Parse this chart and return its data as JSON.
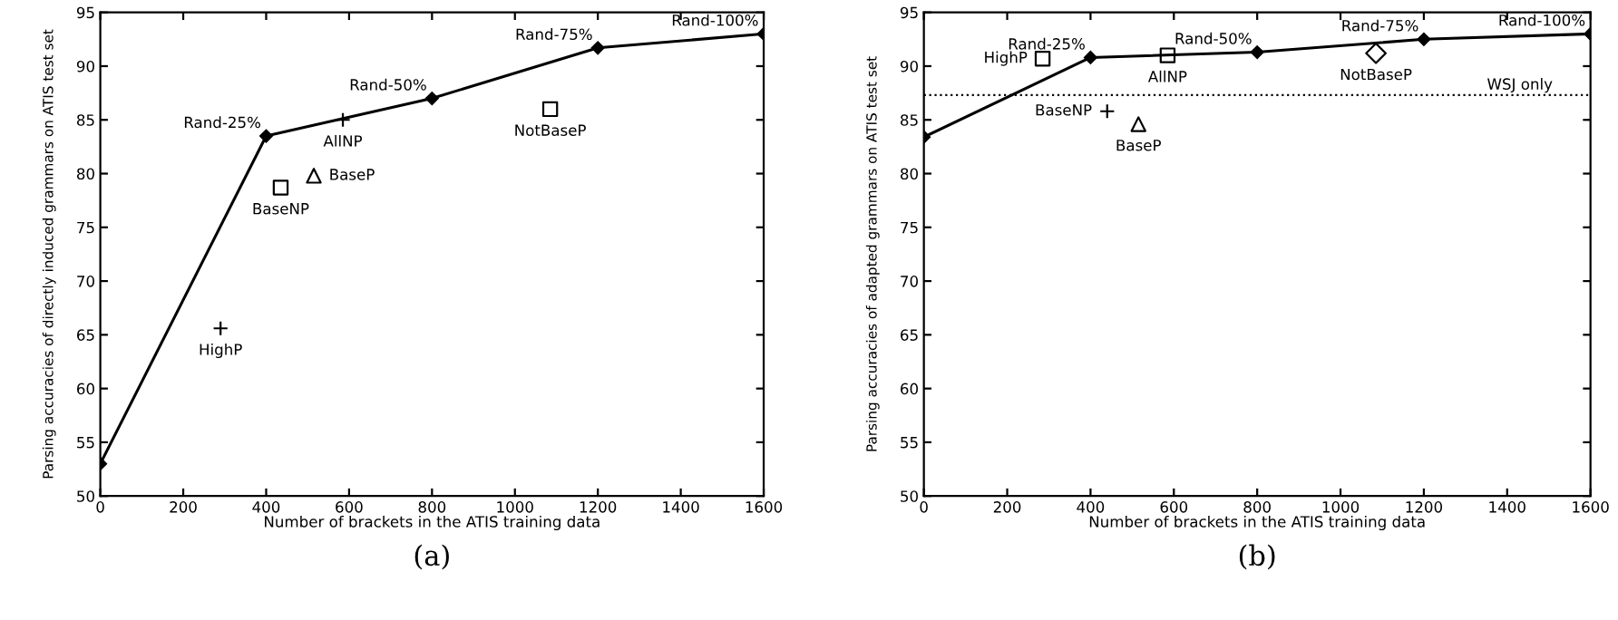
{
  "chart_data": [
    {
      "type": "line",
      "xlabel": "Number of brackets in the ATIS training data",
      "ylabel": "Parsing accuracies of directly induced grammars on ATIS test set",
      "xlim": [
        0,
        1600
      ],
      "ylim": [
        50,
        95
      ],
      "xticks": [
        0,
        200,
        400,
        600,
        800,
        1000,
        1200,
        1400,
        1600
      ],
      "yticks": [
        50,
        55,
        60,
        65,
        70,
        75,
        80,
        85,
        90,
        95
      ],
      "grid": false,
      "legend": false,
      "series": [
        {
          "color": "#000000",
          "marker": "diamond",
          "line_style": "solid",
          "x": [
            0,
            400,
            800,
            1200,
            1600
          ],
          "values": [
            53,
            83.5,
            87,
            91.7,
            93
          ]
        },
        {
          "type": "scatter",
          "name": "HighP",
          "color": "#000000",
          "marker": "cross",
          "x": [
            290
          ],
          "values": [
            65.6
          ]
        },
        {
          "type": "scatter",
          "name": "BaseNP",
          "color": "#000000",
          "marker": "square",
          "x": [
            435
          ],
          "values": [
            78.7
          ]
        },
        {
          "type": "scatter",
          "name": "BaseP",
          "color": "#000000",
          "marker": "triangle",
          "x": [
            515
          ],
          "values": [
            79.8
          ]
        },
        {
          "type": "scatter",
          "name": "AllNP",
          "color": "#000000",
          "marker": "cross",
          "x": [
            585
          ],
          "values": [
            85
          ]
        },
        {
          "type": "scatter",
          "name": "NotBaseP",
          "color": "#000000",
          "marker": "square",
          "x": [
            1085
          ],
          "values": [
            86
          ]
        }
      ],
      "annotations": [
        {
          "text": "Rand-25%",
          "x": 400,
          "y": 83.5
        },
        {
          "text": "Rand-50%",
          "x": 800,
          "y": 87
        },
        {
          "text": "Rand-75%",
          "x": 1200,
          "y": 91.7
        },
        {
          "text": "Rand-100%",
          "x": 1600,
          "y": 93
        },
        "(a)"
      ]
    },
    {
      "type": "line",
      "xlabel": "Number of brackets in the ATIS training data",
      "ylabel": "Parsing accuracies of adapted grammars on ATIS test set",
      "xlim": [
        0,
        1600
      ],
      "ylim": [
        50,
        95
      ],
      "xticks": [
        0,
        200,
        400,
        600,
        800,
        1000,
        1200,
        1400,
        1600
      ],
      "yticks": [
        50,
        55,
        60,
        65,
        70,
        75,
        80,
        85,
        90,
        95
      ],
      "grid": false,
      "legend": false,
      "series": [
        {
          "color": "#000000",
          "marker": "diamond",
          "line_style": "solid",
          "x": [
            0,
            400,
            800,
            1200,
            1600
          ],
          "values": [
            83.4,
            90.8,
            91.3,
            92.5,
            93
          ]
        },
        {
          "type": "scatter",
          "name": "HighP",
          "color": "#000000",
          "marker": "square",
          "x": [
            285
          ],
          "values": [
            90.7
          ]
        },
        {
          "type": "scatter",
          "name": "BaseNP",
          "color": "#000000",
          "marker": "cross",
          "x": [
            440
          ],
          "values": [
            85.8
          ]
        },
        {
          "type": "scatter",
          "name": "BaseP",
          "color": "#000000",
          "marker": "triangle",
          "x": [
            515
          ],
          "values": [
            84.6
          ]
        },
        {
          "type": "scatter",
          "name": "AllNP",
          "color": "#000000",
          "marker": "square",
          "x": [
            585
          ],
          "values": [
            91
          ]
        },
        {
          "type": "scatter",
          "name": "NotBaseP",
          "color": "#000000",
          "marker": "diamond",
          "x": [
            1085
          ],
          "values": [
            91.2
          ]
        }
      ],
      "ref_lines": [
        {
          "axis": "y",
          "value": 87.3,
          "label": "WSJ only",
          "line_style": "dotted",
          "color": "#000000"
        }
      ],
      "annotations": [
        {
          "text": "Rand-25%",
          "x": 400,
          "y": 90.8
        },
        {
          "text": "Rand-50%",
          "x": 800,
          "y": 91.3
        },
        {
          "text": "Rand-75%",
          "x": 1200,
          "y": 92.5
        },
        {
          "text": "Rand-100%",
          "x": 1600,
          "y": 93
        },
        "(b)"
      ]
    }
  ]
}
